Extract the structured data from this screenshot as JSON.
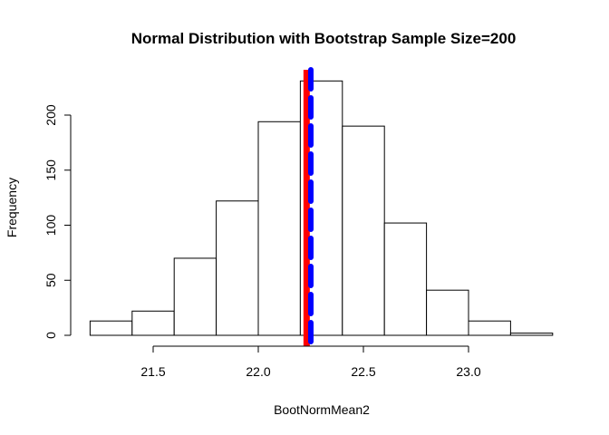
{
  "chart_data": {
    "type": "bar",
    "title": "Normal Distribution with Bootstrap Sample Size=200",
    "xlabel": "BootNormMean2",
    "ylabel": "Frequency",
    "bins": [
      {
        "x0": 21.2,
        "x1": 21.4,
        "count": 13
      },
      {
        "x0": 21.4,
        "x1": 21.6,
        "count": 22
      },
      {
        "x0": 21.6,
        "x1": 21.8,
        "count": 70
      },
      {
        "x0": 21.8,
        "x1": 22.0,
        "count": 122
      },
      {
        "x0": 22.0,
        "x1": 22.2,
        "count": 194
      },
      {
        "x0": 22.2,
        "x1": 22.4,
        "count": 231
      },
      {
        "x0": 22.4,
        "x1": 22.6,
        "count": 190
      },
      {
        "x0": 22.6,
        "x1": 22.8,
        "count": 102
      },
      {
        "x0": 22.8,
        "x1": 23.0,
        "count": 41
      },
      {
        "x0": 23.0,
        "x1": 23.2,
        "count": 13
      },
      {
        "x0": 23.2,
        "x1": 23.4,
        "count": 2
      }
    ],
    "xlim": [
      21.2,
      23.4
    ],
    "ylim": [
      0,
      240
    ],
    "x_ticks": [
      21.5,
      22.0,
      22.5,
      23.0
    ],
    "x_tick_labels": [
      "21.5",
      "22.0",
      "22.5",
      "23.0"
    ],
    "y_ticks": [
      0,
      50,
      100,
      150,
      200
    ],
    "y_tick_labels": [
      "0",
      "50",
      "100",
      "150",
      "200"
    ],
    "reference_lines": [
      {
        "x": 22.23,
        "color": "#ff0000",
        "style": "solid"
      },
      {
        "x": 22.25,
        "color": "#0000ff",
        "style": "dashed"
      }
    ],
    "grid": false
  }
}
